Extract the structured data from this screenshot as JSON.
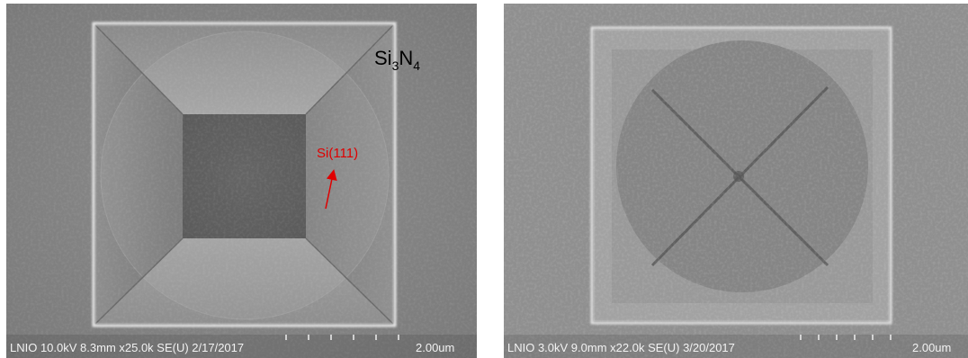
{
  "panels": [
    {
      "caption": "LNIO 10.0kV 8.3mm x25.0k SE(U) 2/17/2017",
      "scale": "2.00um",
      "material_label": {
        "parts": [
          "Si",
          "3",
          "N",
          "4"
        ]
      },
      "arrow_label": "Si(111)"
    },
    {
      "caption": "LNIO 3.0kV 9.0mm x22.0k SE(U) 3/20/2017",
      "scale": "2.00um"
    }
  ]
}
